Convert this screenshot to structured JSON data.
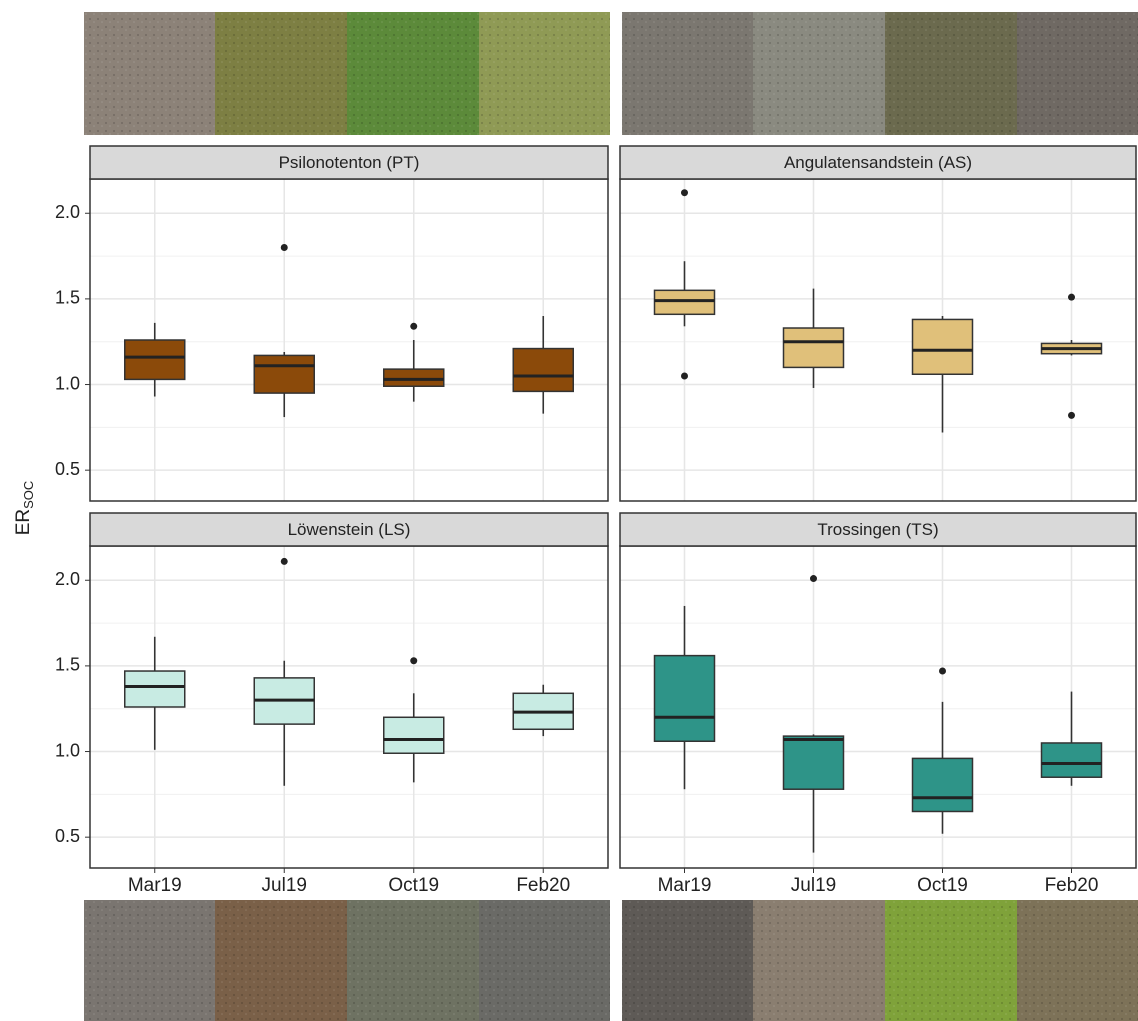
{
  "chart_data": [
    {
      "type": "box",
      "title": "Psilonotenton (PT)",
      "ylabel": "ER",
      "ylabel_subscript": "SOC",
      "color": "#8b4a0a",
      "ylim": [
        0.32,
        2.2
      ],
      "yticks": [
        0.5,
        {
          "value": 1,
          "label": "1.0"
        },
        1.5,
        {
          "value": 2,
          "label": "2.0"
        }
      ],
      "grid": true,
      "boxes": [
        {
          "min": 0.93,
          "q1": 1.03,
          "median": 1.16,
          "q3": 1.26,
          "max": 1.36,
          "outliers": []
        },
        {
          "min": 0.81,
          "q1": 0.95,
          "median": 1.11,
          "q3": 1.17,
          "max": 1.19,
          "outliers": [
            1.8
          ]
        },
        {
          "min": 0.9,
          "q1": 0.99,
          "median": 1.03,
          "q3": 1.09,
          "max": 1.26,
          "outliers": [
            1.34
          ]
        },
        {
          "min": 0.83,
          "q1": 0.96,
          "median": 1.05,
          "q3": 1.21,
          "max": 1.4,
          "outliers": []
        }
      ]
    },
    {
      "type": "box",
      "title": "Angulatensandstein (AS)",
      "color": "#e0c07a",
      "ylim": [
        0.32,
        2.2
      ],
      "yticks": [
        0.5,
        1,
        1.5,
        2
      ],
      "grid": true,
      "boxes": [
        {
          "min": 1.34,
          "q1": 1.41,
          "median": 1.49,
          "q3": 1.55,
          "max": 1.72,
          "outliers": [
            2.12,
            1.05
          ]
        },
        {
          "min": 0.98,
          "q1": 1.1,
          "median": 1.25,
          "q3": 1.33,
          "max": 1.56,
          "outliers": []
        },
        {
          "min": 0.72,
          "q1": 1.06,
          "median": 1.2,
          "q3": 1.38,
          "max": 1.4,
          "outliers": []
        },
        {
          "min": 1.17,
          "q1": 1.18,
          "median": 1.21,
          "q3": 1.24,
          "max": 1.26,
          "outliers": [
            1.51,
            0.82
          ]
        }
      ]
    },
    {
      "type": "box",
      "title": "Löwenstein (LS)",
      "color": "#c8ebe3",
      "ylim": [
        0.32,
        2.2
      ],
      "yticks": [
        0.5,
        {
          "value": 1,
          "label": "1.0"
        },
        1.5,
        {
          "value": 2,
          "label": "2.0"
        }
      ],
      "grid": true,
      "categories": [
        "Mar19",
        "Jul19",
        "Oct19",
        "Feb20"
      ],
      "boxes": [
        {
          "min": 1.01,
          "q1": 1.26,
          "median": 1.38,
          "q3": 1.47,
          "max": 1.67,
          "outliers": []
        },
        {
          "min": 0.8,
          "q1": 1.16,
          "median": 1.3,
          "q3": 1.43,
          "max": 1.53,
          "outliers": [
            2.11
          ]
        },
        {
          "min": 0.82,
          "q1": 0.99,
          "median": 1.07,
          "q3": 1.2,
          "max": 1.34,
          "outliers": [
            1.53
          ]
        },
        {
          "min": 1.09,
          "q1": 1.13,
          "median": 1.23,
          "q3": 1.34,
          "max": 1.39,
          "outliers": []
        }
      ]
    },
    {
      "type": "box",
      "title": "Trossingen (TS)",
      "color": "#2e9488",
      "ylim": [
        0.32,
        2.2
      ],
      "yticks": [
        0.5,
        1,
        1.5,
        2
      ],
      "grid": true,
      "categories": [
        "Mar19",
        "Jul19",
        "Oct19",
        "Feb20"
      ],
      "boxes": [
        {
          "min": 0.78,
          "q1": 1.06,
          "median": 1.2,
          "q3": 1.56,
          "max": 1.85,
          "outliers": []
        },
        {
          "min": 0.41,
          "q1": 0.78,
          "median": 1.07,
          "q3": 1.09,
          "max": 1.1,
          "outliers": [
            2.01
          ]
        },
        {
          "min": 0.52,
          "q1": 0.65,
          "median": 0.73,
          "q3": 0.96,
          "max": 1.29,
          "outliers": [
            1.47
          ]
        },
        {
          "min": 0.8,
          "q1": 0.85,
          "median": 0.93,
          "q3": 1.05,
          "max": 1.35,
          "outliers": []
        }
      ]
    }
  ]
}
